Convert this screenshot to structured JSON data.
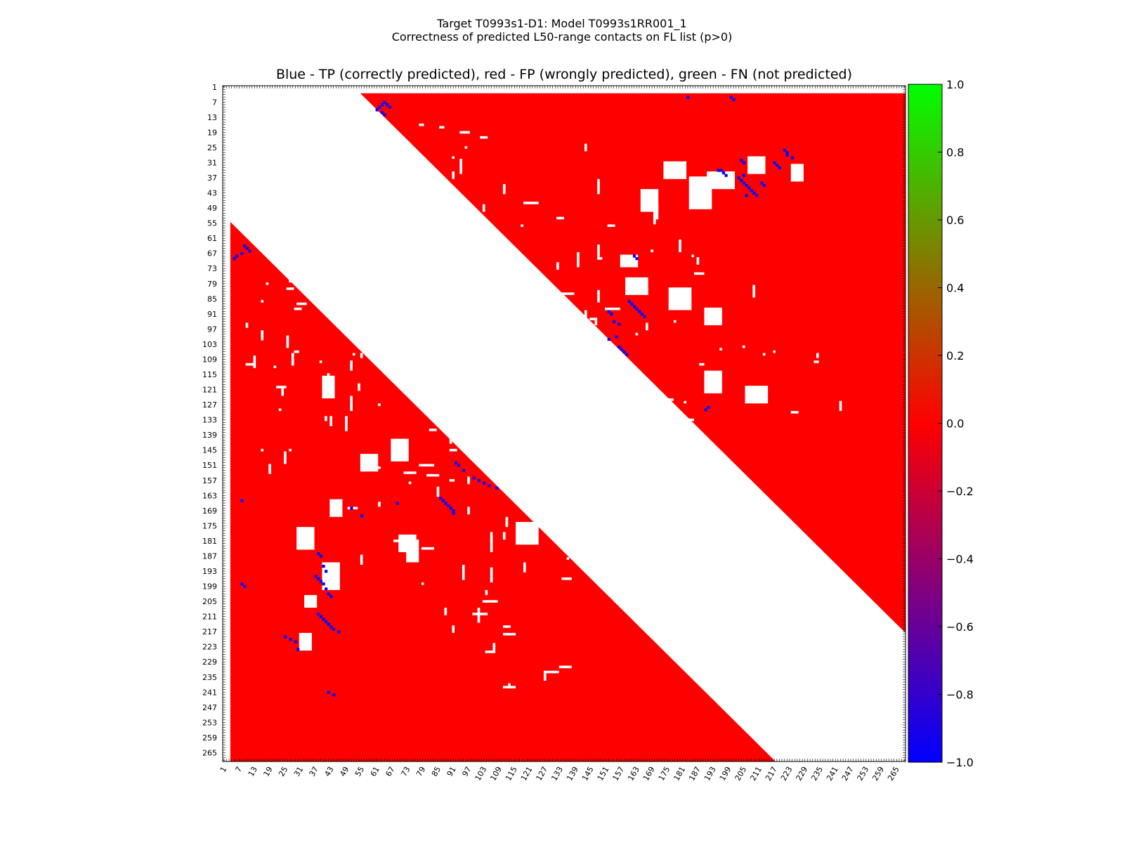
{
  "header": {
    "title_line1": "Target T0993s1-D1: Model T0993s1RR001_1",
    "title_line2": "Correctness of predicted L50-range contacts on FL list (p>0)"
  },
  "chart_data": {
    "type": "heatmap",
    "title": "Blue - TP (correctly predicted), red - FP (wrongly predicted), green - FN (not predicted)",
    "residue_range": [
      1,
      268
    ],
    "tick_labels": [
      "1",
      "7",
      "13",
      "19",
      "25",
      "31",
      "37",
      "43",
      "49",
      "55",
      "61",
      "67",
      "73",
      "79",
      "85",
      "91",
      "97",
      "103",
      "109",
      "115",
      "121",
      "127",
      "133",
      "139",
      "145",
      "151",
      "157",
      "163",
      "169",
      "175",
      "181",
      "187",
      "193",
      "199",
      "205",
      "211",
      "217",
      "223",
      "229",
      "235",
      "241",
      "247",
      "253",
      "259",
      "265"
    ],
    "colorbar": {
      "range": [
        -1.0,
        1.0
      ],
      "ticks": [
        "1.0",
        "0.8",
        "0.6",
        "0.4",
        "0.2",
        "0.0",
        "−0.2",
        "−0.4",
        "−0.6",
        "−0.8",
        "−1.0"
      ],
      "tick_values": [
        1.0,
        0.8,
        0.6,
        0.4,
        0.2,
        0.0,
        -0.2,
        -0.4,
        -0.6,
        -0.8,
        -1.0
      ]
    },
    "legend": {
      "tp": "Blue - TP (correctly predicted)",
      "fp": "red - FP (wrongly predicted)",
      "fn": "green - FN (not predicted)"
    },
    "regions": {
      "upper_fp_triangle": {
        "i_start": 4,
        "j_start": 55,
        "j_end": 268,
        "i_end": 217
      },
      "lower_fp_triangle": {
        "i_start": 55,
        "i_end": 268,
        "j_start": 4,
        "j_end": 217
      }
    },
    "tp_contacts": [
      [
        7,
        64
      ],
      [
        8,
        63
      ],
      [
        9,
        62
      ],
      [
        10,
        61
      ],
      [
        11,
        63
      ],
      [
        12,
        64
      ],
      [
        8,
        65
      ],
      [
        9,
        66
      ],
      [
        5,
        183
      ],
      [
        5,
        200
      ],
      [
        6,
        201
      ],
      [
        26,
        221
      ],
      [
        27,
        222
      ],
      [
        28,
        222
      ],
      [
        29,
        224
      ],
      [
        31,
        217
      ],
      [
        32,
        218
      ],
      [
        33,
        219
      ],
      [
        34,
        196
      ],
      [
        35,
        197
      ],
      [
        36,
        198
      ],
      [
        37,
        203
      ],
      [
        38,
        204
      ],
      [
        39,
        205
      ],
      [
        40,
        206
      ],
      [
        41,
        207
      ],
      [
        42,
        208
      ],
      [
        43,
        209
      ],
      [
        44,
        210
      ],
      [
        30,
        204
      ],
      [
        31,
        205
      ],
      [
        34,
        195
      ],
      [
        36,
        205
      ],
      [
        39,
        212
      ],
      [
        40,
        213
      ],
      [
        44,
        206
      ],
      [
        68,
        162
      ],
      [
        69,
        163
      ],
      [
        86,
        160
      ],
      [
        87,
        161
      ],
      [
        88,
        162
      ],
      [
        89,
        163
      ],
      [
        90,
        164
      ],
      [
        91,
        165
      ],
      [
        92,
        166
      ],
      [
        90,
        152
      ],
      [
        91,
        153
      ],
      [
        94,
        154
      ],
      [
        95,
        156
      ],
      [
        100,
        155
      ],
      [
        101,
        152
      ],
      [
        104,
        156
      ],
      [
        105,
        157
      ],
      [
        106,
        158
      ],
      [
        107,
        159
      ],
      [
        128,
        191
      ],
      [
        129,
        190
      ],
      [
        64,
        9
      ],
      [
        65,
        10
      ],
      [
        66,
        11
      ],
      [
        67,
        8
      ],
      [
        68,
        6
      ],
      [
        69,
        5
      ],
      [
        165,
        8
      ],
      [
        198,
        8
      ],
      [
        199,
        9
      ],
      [
        150,
        92
      ],
      [
        151,
        93
      ],
      [
        153,
        95
      ],
      [
        156,
        99
      ],
      [
        157,
        101
      ],
      [
        158,
        103
      ],
      [
        159,
        105
      ],
      [
        160,
        108
      ],
      [
        164,
        86
      ],
      [
        165,
        87
      ],
      [
        166,
        88
      ],
      [
        167,
        89
      ],
      [
        168,
        90
      ],
      [
        169,
        91
      ],
      [
        170,
        91
      ],
      [
        168,
        51
      ],
      [
        171,
        55
      ],
      [
        166,
        69
      ],
      [
        186,
        38
      ],
      [
        187,
        39
      ],
      [
        191,
        40
      ],
      [
        193,
        41
      ],
      [
        195,
        37
      ],
      [
        196,
        38
      ],
      [
        197,
        39
      ],
      [
        198,
        40
      ],
      [
        200,
        41
      ],
      [
        202,
        42
      ],
      [
        203,
        43
      ],
      [
        210,
        38
      ],
      [
        211,
        39
      ],
      [
        212,
        40
      ],
      [
        213,
        41
      ],
      [
        214,
        42
      ],
      [
        215,
        43
      ],
      [
        216,
        44
      ],
      [
        217,
        46
      ],
      [
        219,
        25
      ],
      [
        220,
        27
      ],
      [
        221,
        29
      ],
      [
        224,
        30
      ],
      [
        241,
        42
      ],
      [
        242,
        44
      ]
    ],
    "fn_contacts": []
  }
}
